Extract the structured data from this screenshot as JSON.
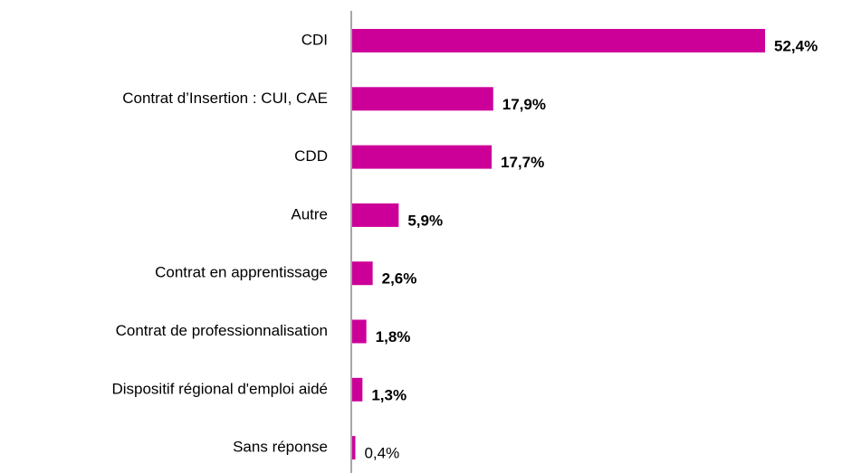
{
  "chart_data": {
    "type": "hbar",
    "categories": [
      "CDI",
      "Contrat d’Insertion : CUI, CAE",
      "CDD",
      "Autre",
      "Contrat en apprentissage",
      "Contrat de professionnalisation",
      "Dispositif régional d'emploi aidé",
      "Sans réponse"
    ],
    "values": [
      52.4,
      17.9,
      17.7,
      5.9,
      2.6,
      1.8,
      1.3,
      0.4
    ],
    "value_labels": [
      "52,4%",
      "17,9%",
      "17,7%",
      "5,9%",
      "2,6%",
      "1,8%",
      "1,3%",
      "0,4%"
    ],
    "label_bold": [
      true,
      true,
      true,
      true,
      true,
      true,
      true,
      false
    ],
    "color": "#cc0099"
  }
}
